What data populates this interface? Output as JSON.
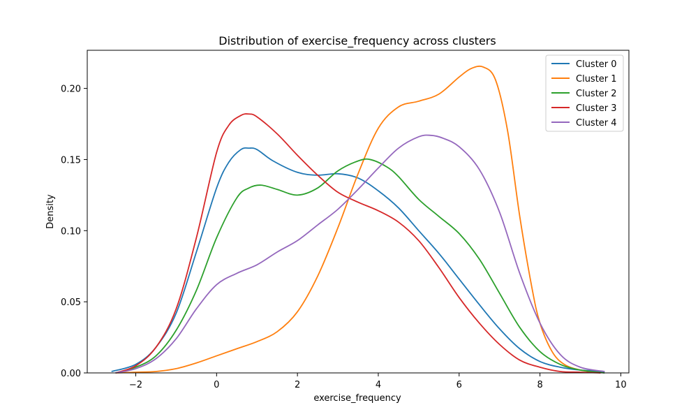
{
  "chart_data": {
    "type": "line",
    "title": "Distribution of exercise_frequency across clusters",
    "xlabel": "exercise_frequency",
    "ylabel": "Density",
    "xlim": [
      -3.2,
      10.2
    ],
    "ylim": [
      0,
      0.2268
    ],
    "xticks": [
      -2,
      0,
      2,
      4,
      6,
      8,
      10
    ],
    "xtick_labels": [
      "−2",
      "0",
      "2",
      "4",
      "6",
      "8",
      "10"
    ],
    "yticks": [
      0,
      0.05,
      0.1,
      0.15,
      0.2
    ],
    "ytick_labels": [
      "0.00",
      "0.05",
      "0.10",
      "0.15",
      "0.20"
    ],
    "grid": false,
    "legend_position": "top-right",
    "series": [
      {
        "name": "Cluster 0",
        "color": "#1f77b4",
        "x": [
          -2.6,
          -2.0,
          -1.5,
          -1.0,
          -0.5,
          0.0,
          0.3,
          0.6,
          0.8,
          1.0,
          1.4,
          2.0,
          2.5,
          3.0,
          3.5,
          4.0,
          4.5,
          5.0,
          5.5,
          6.0,
          6.5,
          7.0,
          7.5,
          8.0,
          8.5,
          9.0,
          9.6
        ],
        "y": [
          0.001,
          0.006,
          0.018,
          0.042,
          0.085,
          0.13,
          0.148,
          0.157,
          0.158,
          0.157,
          0.149,
          0.141,
          0.139,
          0.14,
          0.137,
          0.128,
          0.116,
          0.1,
          0.084,
          0.066,
          0.048,
          0.031,
          0.017,
          0.008,
          0.004,
          0.002,
          0.001
        ]
      },
      {
        "name": "Cluster 1",
        "color": "#ff7f0e",
        "x": [
          -2.5,
          -2.0,
          -1.5,
          -1.0,
          -0.5,
          0.0,
          0.5,
          1.0,
          1.5,
          2.0,
          2.5,
          3.0,
          3.5,
          4.0,
          4.5,
          5.0,
          5.5,
          6.0,
          6.3,
          6.6,
          6.9,
          7.2,
          7.5,
          7.8,
          8.0,
          8.3,
          8.6,
          9.0,
          9.5
        ],
        "y": [
          0.0,
          0.0005,
          0.001,
          0.003,
          0.007,
          0.012,
          0.017,
          0.022,
          0.029,
          0.043,
          0.068,
          0.102,
          0.14,
          0.172,
          0.187,
          0.191,
          0.196,
          0.208,
          0.214,
          0.215,
          0.206,
          0.17,
          0.11,
          0.06,
          0.035,
          0.015,
          0.006,
          0.002,
          0.0
        ]
      },
      {
        "name": "Cluster 2",
        "color": "#2ca02c",
        "x": [
          -2.5,
          -2.0,
          -1.5,
          -1.0,
          -0.5,
          0.0,
          0.5,
          0.8,
          1.1,
          1.5,
          2.0,
          2.5,
          3.0,
          3.5,
          3.8,
          4.2,
          4.5,
          5.0,
          5.5,
          6.0,
          6.5,
          7.0,
          7.5,
          8.0,
          8.5,
          9.0,
          9.6
        ],
        "y": [
          0.0,
          0.004,
          0.012,
          0.03,
          0.058,
          0.095,
          0.123,
          0.13,
          0.132,
          0.129,
          0.125,
          0.13,
          0.142,
          0.149,
          0.15,
          0.145,
          0.138,
          0.122,
          0.11,
          0.098,
          0.08,
          0.056,
          0.032,
          0.015,
          0.006,
          0.002,
          0.0
        ]
      },
      {
        "name": "Cluster 3",
        "color": "#d62728",
        "x": [
          -2.5,
          -2.0,
          -1.5,
          -1.0,
          -0.5,
          0.0,
          0.3,
          0.6,
          0.8,
          1.0,
          1.5,
          2.0,
          2.5,
          3.0,
          3.5,
          4.0,
          4.5,
          5.0,
          5.5,
          6.0,
          6.5,
          7.0,
          7.5,
          8.0,
          8.5,
          9.0,
          9.5
        ],
        "y": [
          0.0,
          0.005,
          0.018,
          0.045,
          0.095,
          0.155,
          0.174,
          0.181,
          0.182,
          0.18,
          0.168,
          0.153,
          0.139,
          0.127,
          0.12,
          0.114,
          0.106,
          0.093,
          0.074,
          0.053,
          0.035,
          0.02,
          0.009,
          0.004,
          0.001,
          0.0005,
          0.0
        ]
      },
      {
        "name": "Cluster 4",
        "color": "#9467bd",
        "x": [
          -2.5,
          -2.0,
          -1.5,
          -1.0,
          -0.5,
          0.0,
          0.5,
          1.0,
          1.5,
          2.0,
          2.5,
          3.0,
          3.5,
          4.0,
          4.5,
          5.0,
          5.3,
          5.6,
          6.0,
          6.5,
          7.0,
          7.5,
          8.0,
          8.5,
          9.0,
          9.6
        ],
        "y": [
          0.0,
          0.003,
          0.01,
          0.024,
          0.045,
          0.062,
          0.07,
          0.076,
          0.085,
          0.093,
          0.104,
          0.115,
          0.129,
          0.144,
          0.158,
          0.166,
          0.167,
          0.165,
          0.159,
          0.143,
          0.113,
          0.07,
          0.035,
          0.013,
          0.004,
          0.001
        ]
      }
    ]
  }
}
